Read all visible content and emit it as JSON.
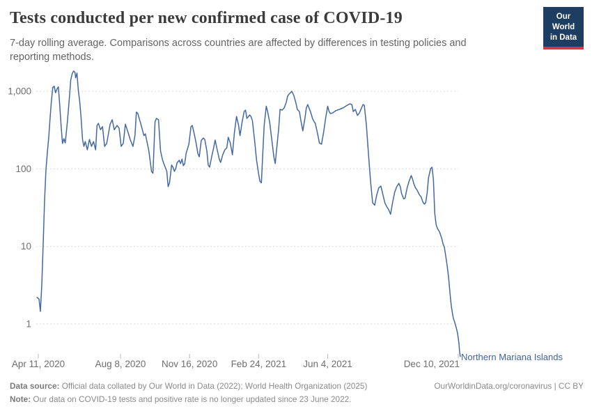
{
  "header": {
    "title": "Tests conducted per new confirmed case of COVID-19",
    "subtitle": "7-day rolling average. Comparisons across countries are affected by differences in testing policies and reporting methods.",
    "logo": {
      "line1": "Our World",
      "line2": "in Data",
      "bg_color": "#1d3d63",
      "accent_color": "#c93c47"
    }
  },
  "chart_data": {
    "type": "line",
    "y_scale": "log",
    "grid": "horizontal-dashed",
    "legend_position": "end-of-line",
    "entity_label": "Northern Mariana Islands",
    "line_color": "#4268a3",
    "label_color": "#3d649c",
    "grid_color": "#d9d9d9",
    "tick_text_color": "#6e6e6e",
    "ylim": [
      0.35,
      1900
    ],
    "y_ticks": [
      {
        "value": 1,
        "label": "1"
      },
      {
        "value": 10,
        "label": "10"
      },
      {
        "value": 100,
        "label": "100"
      },
      {
        "value": 1000,
        "label": "1,000"
      }
    ],
    "x_axis_note": "offsets are days since 2020-04-11",
    "x_ticks": [
      {
        "offset": 0,
        "label": "Apr 11, 2020"
      },
      {
        "offset": 119,
        "label": "Aug 8, 2020"
      },
      {
        "offset": 219,
        "label": "Nov 16, 2020"
      },
      {
        "offset": 319,
        "label": "Feb 24, 2021"
      },
      {
        "offset": 419,
        "label": "Jun 4, 2021"
      },
      {
        "offset": 608,
        "label": "Dec 10, 2021"
      }
    ],
    "series": [
      {
        "name": "Northern Mariana Islands",
        "points": [
          [
            -2,
            2.2
          ],
          [
            1,
            2.1
          ],
          [
            3,
            1.45
          ],
          [
            5,
            3.2
          ],
          [
            7,
            10
          ],
          [
            9,
            37
          ],
          [
            11,
            95
          ],
          [
            13,
            160
          ],
          [
            15,
            250
          ],
          [
            17,
            450
          ],
          [
            19,
            750
          ],
          [
            21,
            1120
          ],
          [
            23,
            1165
          ],
          [
            25,
            960
          ],
          [
            27,
            1070
          ],
          [
            29,
            1140
          ],
          [
            31,
            675
          ],
          [
            33,
            363
          ],
          [
            35,
            213
          ],
          [
            37,
            245
          ],
          [
            39,
            216
          ],
          [
            42,
            400
          ],
          [
            45,
            825
          ],
          [
            47,
            1400
          ],
          [
            49,
            1680
          ],
          [
            51,
            1830
          ],
          [
            53,
            1760
          ],
          [
            54,
            1490
          ],
          [
            56,
            1720
          ],
          [
            58,
            1020
          ],
          [
            60,
            735
          ],
          [
            62,
            447
          ],
          [
            64,
            240
          ],
          [
            66,
            195
          ],
          [
            68,
            225
          ],
          [
            71,
            176
          ],
          [
            74,
            240
          ],
          [
            77,
            195
          ],
          [
            80,
            225
          ],
          [
            83,
            176
          ],
          [
            85,
            363
          ],
          [
            87,
            387
          ],
          [
            90,
            320
          ],
          [
            93,
            350
          ],
          [
            96,
            195
          ],
          [
            99,
            213
          ],
          [
            104,
            375
          ],
          [
            107,
            430
          ],
          [
            110,
            320
          ],
          [
            114,
            363
          ],
          [
            117,
            334
          ],
          [
            120,
            195
          ],
          [
            123,
            213
          ],
          [
            126,
            377
          ],
          [
            130,
            295
          ],
          [
            133,
            240
          ],
          [
            137,
            195
          ],
          [
            140,
            268
          ],
          [
            142,
            540
          ],
          [
            144,
            520
          ],
          [
            148,
            390
          ],
          [
            153,
            268
          ],
          [
            155,
            283
          ],
          [
            160,
            171
          ],
          [
            164,
            92
          ],
          [
            166,
            88
          ],
          [
            169,
            406
          ],
          [
            171,
            447
          ],
          [
            174,
            430
          ],
          [
            177,
            171
          ],
          [
            180,
            129
          ],
          [
            183,
            109
          ],
          [
            186,
            93
          ],
          [
            188,
            59
          ],
          [
            190,
            66
          ],
          [
            193,
            112
          ],
          [
            195,
            105
          ],
          [
            197,
            93
          ],
          [
            199,
            101
          ],
          [
            201,
            120
          ],
          [
            204,
            129
          ],
          [
            206,
            117
          ],
          [
            208,
            134
          ],
          [
            210,
            110
          ],
          [
            212,
            117
          ],
          [
            214,
            158
          ],
          [
            218,
            209
          ],
          [
            221,
            350
          ],
          [
            223,
            363
          ],
          [
            226,
            277
          ],
          [
            228,
            227
          ],
          [
            231,
            158
          ],
          [
            233,
            143
          ],
          [
            236,
            233
          ],
          [
            239,
            250
          ],
          [
            241,
            240
          ],
          [
            244,
            171
          ],
          [
            246,
            112
          ],
          [
            248,
            105
          ],
          [
            251,
            143
          ],
          [
            254,
            190
          ],
          [
            256,
            235
          ],
          [
            259,
            176
          ],
          [
            262,
            134
          ],
          [
            264,
            121
          ],
          [
            267,
            152
          ],
          [
            270,
            176
          ],
          [
            273,
            187
          ],
          [
            275,
            256
          ],
          [
            278,
            216
          ],
          [
            281,
            152
          ],
          [
            284,
            295
          ],
          [
            287,
            474
          ],
          [
            290,
            363
          ],
          [
            292,
            268
          ],
          [
            295,
            400
          ],
          [
            298,
            549
          ],
          [
            300,
            573
          ],
          [
            302,
            447
          ],
          [
            306,
            496
          ],
          [
            308,
            474
          ],
          [
            310,
            418
          ],
          [
            313,
            240
          ],
          [
            316,
            129
          ],
          [
            319,
            85
          ],
          [
            321,
            69
          ],
          [
            323,
            66
          ],
          [
            325,
            158
          ],
          [
            327,
            363
          ],
          [
            330,
            643
          ],
          [
            332,
            549
          ],
          [
            335,
            400
          ],
          [
            338,
            240
          ],
          [
            341,
            143
          ],
          [
            343,
            117
          ],
          [
            345,
            176
          ],
          [
            348,
            326
          ],
          [
            350,
            585
          ],
          [
            353,
            573
          ],
          [
            356,
            610
          ],
          [
            359,
            721
          ],
          [
            361,
            867
          ],
          [
            363,
            921
          ],
          [
            365,
            960
          ],
          [
            367,
            1000
          ],
          [
            370,
            884
          ],
          [
            373,
            705
          ],
          [
            375,
            585
          ],
          [
            378,
            549
          ],
          [
            380,
            430
          ],
          [
            383,
            309
          ],
          [
            386,
            447
          ],
          [
            388,
            610
          ],
          [
            390,
            675
          ],
          [
            394,
            549
          ],
          [
            397,
            447
          ],
          [
            399,
            409
          ],
          [
            401,
            387
          ],
          [
            404,
            295
          ],
          [
            407,
            216
          ],
          [
            410,
            208
          ],
          [
            413,
            295
          ],
          [
            416,
            447
          ],
          [
            419,
            643
          ],
          [
            421,
            549
          ],
          [
            423,
            516
          ],
          [
            426,
            527
          ],
          [
            431,
            565
          ],
          [
            436,
            585
          ],
          [
            441,
            610
          ],
          [
            446,
            650
          ],
          [
            451,
            690
          ],
          [
            454,
            675
          ],
          [
            456,
            549
          ],
          [
            459,
            585
          ],
          [
            462,
            490
          ],
          [
            465,
            527
          ],
          [
            468,
            610
          ],
          [
            470,
            675
          ],
          [
            472,
            659
          ],
          [
            475,
            363
          ],
          [
            478,
            158
          ],
          [
            481,
            70
          ],
          [
            484,
            36.5
          ],
          [
            487,
            34
          ],
          [
            490,
            46
          ],
          [
            493,
            57
          ],
          [
            496,
            60
          ],
          [
            499,
            46
          ],
          [
            502,
            36
          ],
          [
            505,
            32
          ],
          [
            507,
            30
          ],
          [
            510,
            26
          ],
          [
            513,
            37
          ],
          [
            516,
            50
          ],
          [
            519,
            59
          ],
          [
            522,
            65
          ],
          [
            524,
            59
          ],
          [
            526,
            48
          ],
          [
            529,
            41
          ],
          [
            531,
            42
          ],
          [
            534,
            57
          ],
          [
            537,
            70
          ],
          [
            540,
            82
          ],
          [
            542,
            73
          ],
          [
            544,
            63
          ],
          [
            546,
            57
          ],
          [
            548,
            54
          ],
          [
            550,
            50
          ],
          [
            552,
            46
          ],
          [
            554,
            44
          ],
          [
            557,
            37
          ],
          [
            559,
            35
          ],
          [
            561,
            37
          ],
          [
            563,
            49
          ],
          [
            565,
            77
          ],
          [
            568,
            101
          ],
          [
            570,
            105
          ],
          [
            572,
            73
          ],
          [
            574,
            27
          ],
          [
            576,
            19
          ],
          [
            578,
            17
          ],
          [
            581,
            15.3
          ],
          [
            584,
            12.7
          ],
          [
            586,
            10.8
          ],
          [
            588,
            9.7
          ],
          [
            590,
            7.4
          ],
          [
            592,
            5.6
          ],
          [
            594,
            4.0
          ],
          [
            596,
            2.5
          ],
          [
            598,
            1.7
          ],
          [
            600,
            1.3
          ],
          [
            601,
            1.18
          ],
          [
            603,
            1.04
          ],
          [
            605,
            0.9
          ],
          [
            607,
            0.76
          ],
          [
            609,
            0.57
          ],
          [
            610,
            0.44
          ],
          [
            611,
            0.38
          ]
        ]
      }
    ]
  },
  "footer": {
    "source_label": "Data source:",
    "source_text": " Official data collated by Our World in Data (2022); World Health Organization (2025)",
    "rights_text": "OurWorldinData.org/coronavirus | CC BY",
    "note_label": "Note:",
    "note_text": " Our data on COVID-19 tests and positive rate is no longer updated since 23 June 2022."
  }
}
